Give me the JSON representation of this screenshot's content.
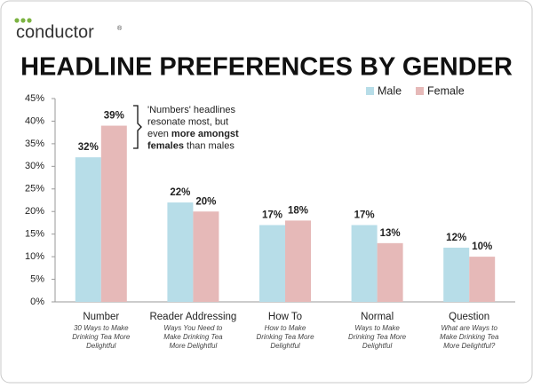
{
  "logo": "conductor",
  "logo_mark": "®",
  "chart_data": {
    "type": "bar",
    "title": "HEADLINE PREFERENCES BY GENDER",
    "categories": [
      "Number",
      "Reader Addressing",
      "How To",
      "Normal",
      "Question"
    ],
    "category_notes": [
      [
        "30 Ways to Make",
        "Drinking Tea More",
        "Delightful"
      ],
      [
        "Ways You Need to",
        "Make Drinking Tea",
        "More Delightful"
      ],
      [
        "How to Make",
        "Drinking Tea More",
        "Delightful"
      ],
      [
        "Ways to Make",
        "Drinking Tea More",
        "Delightful"
      ],
      [
        "What are Ways to",
        "Make Drinking Tea",
        "More Delightful?"
      ]
    ],
    "series": [
      {
        "name": "Male",
        "color": "#b7dde8",
        "values": [
          32,
          22,
          17,
          17,
          12
        ],
        "value_labels": [
          "32%",
          "22%",
          "17%",
          "17%",
          "12%"
        ]
      },
      {
        "name": "Female",
        "color": "#e6b9b8",
        "values": [
          39,
          20,
          18,
          13,
          10
        ],
        "value_labels": [
          "39%",
          "20%",
          "18%",
          "13%",
          "10%"
        ]
      }
    ],
    "ylim": [
      0,
      45
    ],
    "yticks": [
      {
        "value": 0,
        "label": "0%"
      },
      {
        "value": 5,
        "label": "5%"
      },
      {
        "value": 10,
        "label": "10%"
      },
      {
        "value": 15,
        "label": "15%"
      },
      {
        "value": 20,
        "label": "20%"
      },
      {
        "value": 25,
        "label": "25%"
      },
      {
        "value": 30,
        "label": "30%"
      },
      {
        "value": 35,
        "label": "35%"
      },
      {
        "value": 40,
        "label": "40%"
      },
      {
        "value": 45,
        "label": "45%"
      }
    ],
    "annotation": [
      [
        {
          "text": "'Numbers' headlines",
          "bold": false
        }
      ],
      [
        {
          "text": "resonate most, but",
          "bold": false
        }
      ],
      [
        {
          "text": "even ",
          "bold": false
        },
        {
          "text": "more amongst",
          "bold": true
        }
      ],
      [
        {
          "text": "females",
          "bold": true
        },
        {
          "text": " than males",
          "bold": false
        }
      ]
    ]
  }
}
